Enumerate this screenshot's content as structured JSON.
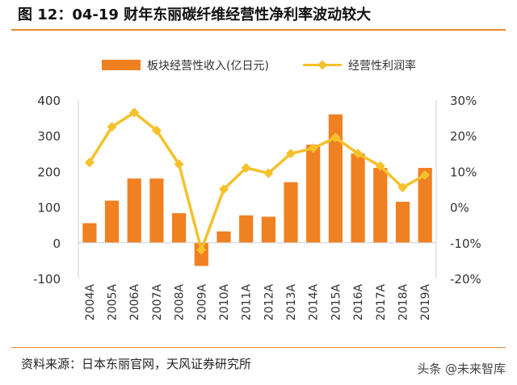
{
  "header": {
    "title": "图 12：04-19 财年东丽碳纤维经营性净利率波动较大"
  },
  "footer": {
    "source": "资料来源：日本东丽官网，天风证券研究所",
    "watermark": "头条 @未来智库"
  },
  "colors": {
    "bar": "#f08122",
    "line": "#f5c12b",
    "accent_rule": "#e98b2a",
    "axis": "#cfcfcf"
  },
  "chart_data": {
    "type": "bar",
    "categories": [
      "2004A",
      "2005A",
      "2006A",
      "2007A",
      "2008A",
      "2009A",
      "2010A",
      "2011A",
      "2012A",
      "2013A",
      "2014A",
      "2015A",
      "2016A",
      "2017A",
      "2018A",
      "2019A"
    ],
    "series": [
      {
        "name": "板块经营性收入(亿日元)",
        "type": "bar",
        "axis": "left",
        "values": [
          55,
          118,
          180,
          180,
          83,
          -65,
          32,
          77,
          73,
          170,
          275,
          360,
          250,
          210,
          115,
          210
        ]
      },
      {
        "name": "经营性利润率",
        "type": "line",
        "axis": "right",
        "unit": "%",
        "values": [
          12.5,
          22.5,
          26.5,
          21.5,
          12.0,
          -12.0,
          5.0,
          11.0,
          9.5,
          15.0,
          16.5,
          19.5,
          15.0,
          11.5,
          5.5,
          9.0
        ]
      }
    ],
    "left_axis": {
      "ylim": [
        -100,
        400
      ],
      "ticks": [
        -100,
        0,
        100,
        200,
        300,
        400
      ],
      "tick_labels": [
        "-100",
        "0",
        "100",
        "200",
        "300",
        "400"
      ]
    },
    "right_axis": {
      "ylim": [
        -20,
        30
      ],
      "ticks": [
        -20,
        -10,
        0,
        10,
        20,
        30
      ],
      "tick_labels": [
        "-20%",
        "-10%",
        "0%",
        "10%",
        "20%",
        "30%"
      ]
    },
    "legend_position": "top-center",
    "grid": false
  }
}
